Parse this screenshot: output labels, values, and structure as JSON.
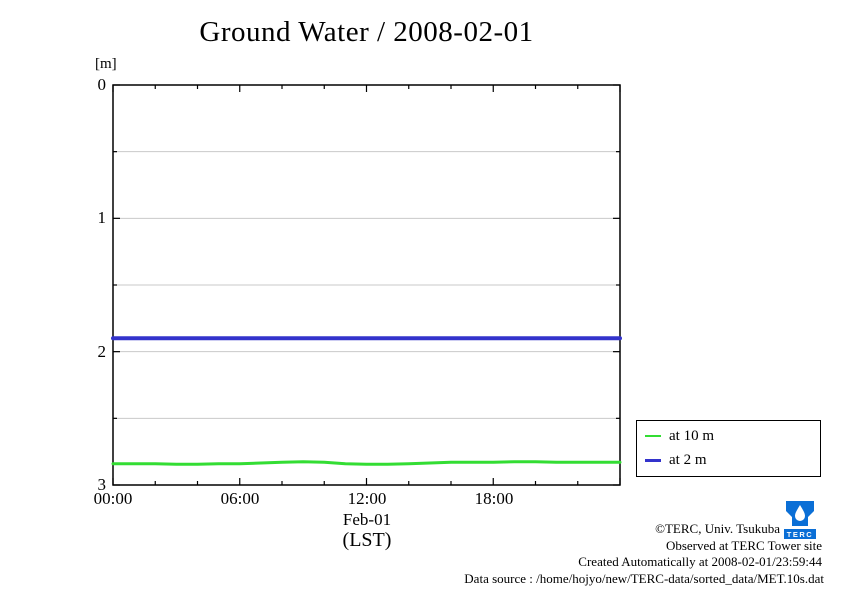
{
  "title": "Ground Water / 2008-02-01",
  "chart_data": {
    "type": "line",
    "title": "Ground Water / 2008-02-01",
    "ylabel": "[m]",
    "xlabel_line1": "Feb-01",
    "xlabel_line2": "(LST)",
    "xlim": [
      0,
      24
    ],
    "ylim": [
      0,
      3
    ],
    "y_inverted_depth_axis": true,
    "grid_y": [
      0.5,
      1.0,
      1.5,
      2.0,
      2.5
    ],
    "x_major": 6,
    "x_minor": 2,
    "y_minor": 0.5,
    "x_tick_labels": [
      "00:00",
      "06:00",
      "12:00",
      "18:00"
    ],
    "y_tick_labels": [
      "0",
      "1",
      "2",
      "3"
    ],
    "legend_position": "outside-right-bottom",
    "series": [
      {
        "name": "at 10 m",
        "color": "#33dd33",
        "width": 3,
        "x": [
          0,
          1,
          2,
          3,
          4,
          5,
          6,
          7,
          8,
          9,
          10,
          11,
          12,
          13,
          14,
          15,
          16,
          17,
          18,
          19,
          20,
          21,
          22,
          23,
          24
        ],
        "y": [
          2.84,
          2.84,
          2.84,
          2.845,
          2.845,
          2.84,
          2.84,
          2.835,
          2.83,
          2.825,
          2.83,
          2.84,
          2.845,
          2.845,
          2.84,
          2.835,
          2.83,
          2.83,
          2.83,
          2.825,
          2.825,
          2.83,
          2.83,
          2.83,
          2.83
        ]
      },
      {
        "name": "at 2 m",
        "color": "#3333cc",
        "width": 4,
        "x": [
          0,
          1,
          2,
          3,
          4,
          5,
          6,
          7,
          8,
          9,
          10,
          11,
          12,
          13,
          14,
          15,
          16,
          17,
          18,
          19,
          20,
          21,
          22,
          23,
          24
        ],
        "y": [
          1.9,
          1.9,
          1.9,
          1.9,
          1.9,
          1.9,
          1.9,
          1.9,
          1.9,
          1.9,
          1.9,
          1.9,
          1.9,
          1.9,
          1.9,
          1.9,
          1.9,
          1.9,
          1.9,
          1.9,
          1.9,
          1.9,
          1.9,
          1.9,
          1.9
        ]
      }
    ]
  },
  "footer": {
    "line1": "©TERC, Univ. Tsukuba",
    "line2": "Observed at TERC Tower site",
    "line3": "Created Automatically at 2008-02-01/23:59:44",
    "line4": "Data source : /home/hojyo/new/TERC-data/sorted_data/MET.10s.dat"
  },
  "logo": {
    "text": "TERC",
    "color": "#0b6fd6"
  }
}
